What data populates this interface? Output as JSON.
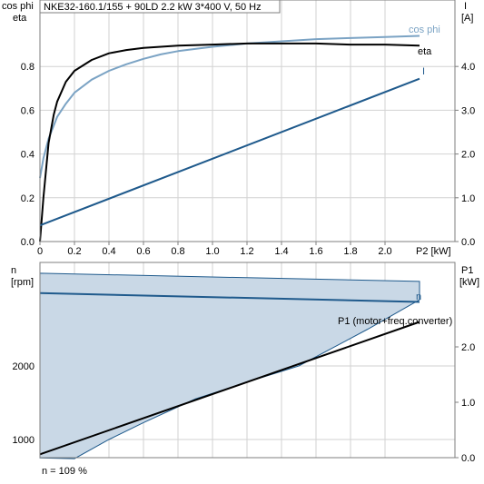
{
  "chart_data": [
    {
      "type": "line",
      "title": "NKE32-160.1/155 + 90LD   2.2 kW   3*400 V, 50 Hz",
      "xlabel": "P2 [kW]",
      "xlim": [
        0,
        2.2
      ],
      "xticks": [
        "0",
        "0.2",
        "0.4",
        "0.6",
        "0.8",
        "1.0",
        "1.2",
        "1.4",
        "1.6",
        "1.8",
        "2.0"
      ],
      "ylabel_left": [
        "cos phi",
        "eta"
      ],
      "ylim_left": [
        0,
        1.0
      ],
      "yticks_left": [
        "0.0",
        "0.2",
        "0.4",
        "0.6",
        "0.8"
      ],
      "ylabel_right": [
        "I",
        "[A]"
      ],
      "ylim_right": [
        0,
        5.0
      ],
      "yticks_right": [
        "0.0",
        "1.0",
        "2.0",
        "3.0",
        "4.0"
      ],
      "grid": true,
      "series": [
        {
          "name": "cos phi",
          "axis": "left",
          "color": "#7ba3c4",
          "x": [
            0,
            0.02,
            0.05,
            0.1,
            0.15,
            0.2,
            0.3,
            0.4,
            0.5,
            0.6,
            0.7,
            0.8,
            1.0,
            1.2,
            1.4,
            1.6,
            1.8,
            2.0,
            2.2
          ],
          "y": [
            0.29,
            0.38,
            0.47,
            0.57,
            0.63,
            0.68,
            0.74,
            0.78,
            0.81,
            0.835,
            0.855,
            0.87,
            0.89,
            0.905,
            0.915,
            0.925,
            0.93,
            0.935,
            0.94
          ]
        },
        {
          "name": "eta",
          "axis": "left",
          "color": "#000000",
          "x": [
            0,
            0.02,
            0.05,
            0.08,
            0.1,
            0.15,
            0.2,
            0.3,
            0.4,
            0.5,
            0.6,
            0.8,
            1.0,
            1.2,
            1.4,
            1.6,
            1.8,
            2.0,
            2.2
          ],
          "y": [
            0.0,
            0.2,
            0.45,
            0.58,
            0.64,
            0.73,
            0.78,
            0.83,
            0.86,
            0.875,
            0.885,
            0.895,
            0.9,
            0.905,
            0.905,
            0.905,
            0.9,
            0.9,
            0.895
          ]
        },
        {
          "name": "I",
          "axis": "right",
          "color": "#1f5a8c",
          "x": [
            0,
            2.2
          ],
          "y": [
            0.37,
            3.72
          ]
        }
      ]
    },
    {
      "type": "area",
      "ylabel_left": [
        "n",
        "[rpm]"
      ],
      "ylim_left": [
        0,
        3000
      ],
      "yticks_left": [
        "1000",
        "2000"
      ],
      "ylabel_right": [
        "P1",
        "[kW]"
      ],
      "ylim_right": [
        0,
        3.0
      ],
      "yticks_right": [
        "0.0",
        "1.0",
        "2.0"
      ],
      "xlim": [
        0,
        2.2
      ],
      "grid": true,
      "series": [
        {
          "name": "n",
          "axis": "left",
          "color": "#1f5a8c",
          "x": [
            0,
            2.2
          ],
          "y": [
            2990,
            2870
          ]
        },
        {
          "name": "P1 (motor+freq.converter)",
          "axis": "right",
          "color": "#000000",
          "x": [
            0,
            2.2
          ],
          "y": [
            0.06,
            2.45
          ]
        }
      ],
      "range_band": {
        "color": "#c9d8e6",
        "upper": {
          "x": [
            0,
            2.2
          ],
          "y": [
            3260,
            3150
          ]
        },
        "lower": {
          "x": [
            0,
            0.2,
            0.4,
            0.6,
            0.9,
            1.2,
            1.5,
            1.9,
            2.2
          ],
          "y": [
            750,
            740,
            1000,
            1230,
            1550,
            1780,
            2000,
            2500,
            2900
          ]
        }
      },
      "annotation": "n = 109 %"
    }
  ]
}
